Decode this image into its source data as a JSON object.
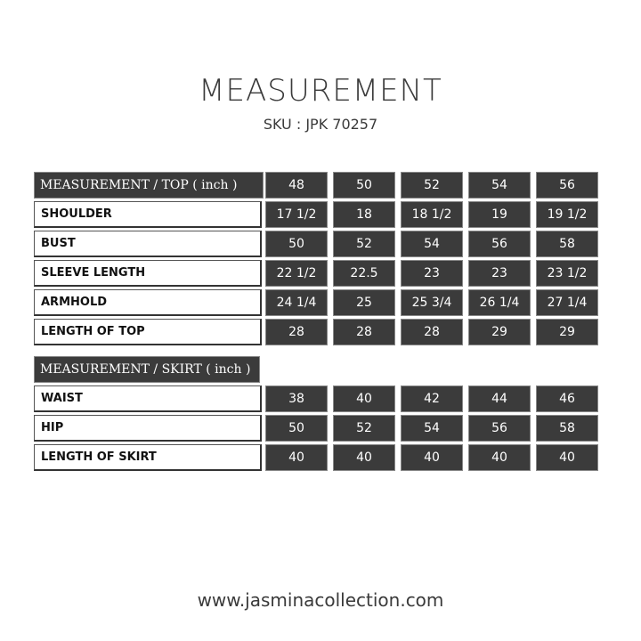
{
  "header": {
    "title": "MEASUREMENT",
    "sku": "SKU : JPK 70257"
  },
  "top_table": {
    "title": "MEASUREMENT / TOP ( inch )",
    "sizes": [
      "48",
      "50",
      "52",
      "54",
      "56"
    ],
    "rows": [
      {
        "label": "SHOULDER",
        "values": [
          "17 1/2",
          "18",
          "18 1/2",
          "19",
          "19 1/2"
        ]
      },
      {
        "label": "BUST",
        "values": [
          "50",
          "52",
          "54",
          "56",
          "58"
        ]
      },
      {
        "label": "SLEEVE LENGTH",
        "values": [
          "22 1/2",
          "22.5",
          "23",
          "23",
          "23 1/2"
        ]
      },
      {
        "label": "ARMHOLD",
        "values": [
          "24 1/4",
          "25",
          "25 3/4",
          "26 1/4",
          "27 1/4"
        ]
      },
      {
        "label": "LENGTH OF TOP",
        "values": [
          "28",
          "28",
          "28",
          "29",
          "29"
        ]
      }
    ]
  },
  "skirt_table": {
    "title": "MEASUREMENT / SKIRT ( inch )",
    "rows": [
      {
        "label": "WAIST",
        "values": [
          "38",
          "40",
          "42",
          "44",
          "46"
        ]
      },
      {
        "label": "HIP",
        "values": [
          "50",
          "52",
          "54",
          "56",
          "58"
        ]
      },
      {
        "label": "LENGTH OF SKIRT",
        "values": [
          "40",
          "40",
          "40",
          "40",
          "40"
        ]
      }
    ]
  },
  "footer": {
    "url": "www.jasminacollection.com"
  }
}
